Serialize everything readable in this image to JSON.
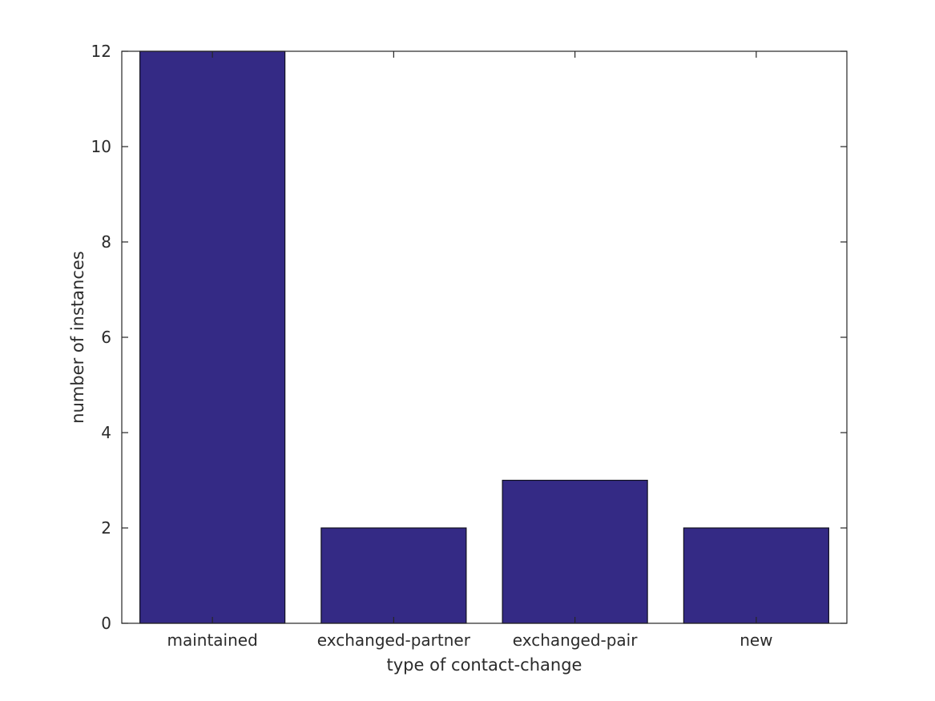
{
  "chart_data": {
    "type": "bar",
    "categories": [
      "maintained",
      "exchanged-partner",
      "exchanged-pair",
      "new"
    ],
    "values": [
      12,
      2,
      3,
      2
    ],
    "title": "",
    "xlabel": "type of contact-change",
    "ylabel": "number of instances",
    "ylim": [
      0,
      12
    ],
    "yticks": [
      0,
      2,
      4,
      6,
      8,
      10,
      12
    ],
    "grid": false,
    "legend": null,
    "bar_color": "#342a85",
    "bar_edge_color": "#101020",
    "axis_color": "#262626",
    "text_color": "#2b2b2b"
  }
}
